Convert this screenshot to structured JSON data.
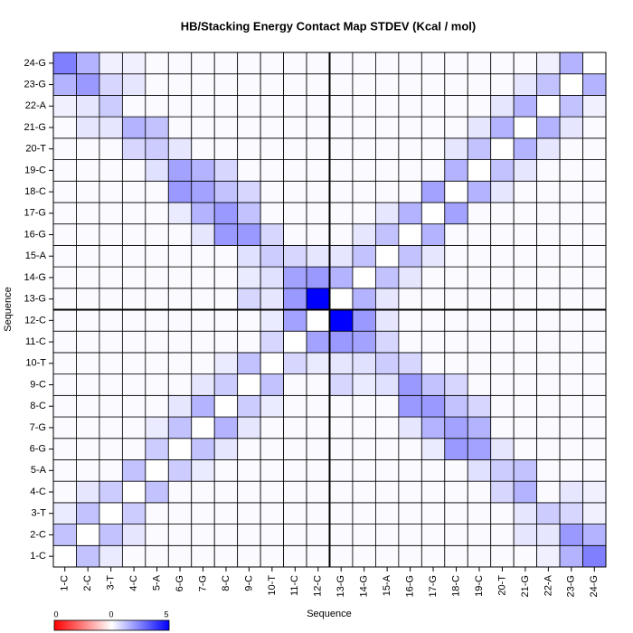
{
  "chart_data": {
    "type": "heatmap",
    "title": "HB/Stacking Energy Contact Map STDEV (Kcal / mol)",
    "x_label": "Sequence",
    "y_label": "Sequence",
    "categories": [
      "1-C",
      "2-C",
      "3-T",
      "4-C",
      "5-A",
      "6-G",
      "7-G",
      "8-C",
      "9-C",
      "10-T",
      "11-C",
      "12-C",
      "13-G",
      "14-G",
      "15-A",
      "16-G",
      "17-G",
      "18-C",
      "19-C",
      "20-T",
      "21-G",
      "22-A",
      "23-G",
      "24-G"
    ],
    "zlim": [
      0,
      5
    ],
    "colormap": [
      "#ff0000",
      "#ffffff",
      "#0000ff"
    ],
    "colorbar_labels": [
      "0",
      "0",
      "5"
    ],
    "values": [
      [
        0,
        1.2,
        0.4,
        0.1,
        0.1,
        0.1,
        0.1,
        0.1,
        0.1,
        0.1,
        0.1,
        0.1,
        0.1,
        0.1,
        0.1,
        0.1,
        0.1,
        0.1,
        0.1,
        0.1,
        0.1,
        0.3,
        1.5,
        2.5
      ],
      [
        1.2,
        0,
        1.2,
        0.5,
        0.1,
        0.1,
        0.1,
        0.1,
        0.1,
        0.1,
        0.1,
        0.1,
        0.1,
        0.1,
        0.1,
        0.1,
        0.1,
        0.1,
        0.1,
        0.1,
        0.5,
        0.5,
        2.0,
        1.5
      ],
      [
        0.4,
        1.2,
        0,
        1.0,
        0.1,
        0.1,
        0.1,
        0.1,
        0.1,
        0.1,
        0.1,
        0.1,
        0.1,
        0.1,
        0.1,
        0.1,
        0.1,
        0.1,
        0.1,
        0.1,
        0.5,
        1.0,
        0.8,
        0.3
      ],
      [
        0.1,
        0.5,
        1.0,
        0,
        1.2,
        0.1,
        0.1,
        0.1,
        0.1,
        0.1,
        0.1,
        0.1,
        0.1,
        0.1,
        0.1,
        0.1,
        0.1,
        0.1,
        0.1,
        0.8,
        1.5,
        0.1,
        0.5,
        0.3
      ],
      [
        0.1,
        0.1,
        0.1,
        1.2,
        0,
        1.0,
        0.4,
        0.1,
        0.1,
        0.1,
        0.1,
        0.1,
        0.1,
        0.1,
        0.1,
        0.1,
        0.1,
        0.1,
        0.6,
        1.0,
        1.2,
        0.1,
        0.1,
        0.1
      ],
      [
        0.1,
        0.1,
        0.1,
        0.1,
        1.0,
        0,
        1.2,
        0.5,
        0.1,
        0.1,
        0.1,
        0.1,
        0.1,
        0.1,
        0.1,
        0.1,
        0.4,
        2.0,
        1.8,
        0.5,
        0.1,
        0.1,
        0.1,
        0.1
      ],
      [
        0.1,
        0.1,
        0.1,
        0.1,
        0.4,
        1.2,
        0,
        1.5,
        0.5,
        0.1,
        0.1,
        0.1,
        0.1,
        0.1,
        0.1,
        0.5,
        1.5,
        1.8,
        1.5,
        0.1,
        0.1,
        0.1,
        0.1,
        0.1
      ],
      [
        0.1,
        0.1,
        0.1,
        0.1,
        0.1,
        0.5,
        1.5,
        0,
        1.0,
        0.4,
        0.1,
        0.1,
        0.1,
        0.1,
        0.1,
        2.0,
        2.0,
        1.2,
        0.8,
        0.1,
        0.1,
        0.1,
        0.1,
        0.1
      ],
      [
        0.1,
        0.1,
        0.1,
        0.1,
        0.1,
        0.1,
        0.5,
        1.0,
        0,
        1.2,
        0.1,
        0.1,
        0.8,
        0.4,
        0.6,
        2.0,
        1.2,
        0.8,
        0.1,
        0.1,
        0.1,
        0.1,
        0.1,
        0.1
      ],
      [
        0.1,
        0.1,
        0.1,
        0.1,
        0.1,
        0.1,
        0.1,
        0.4,
        1.2,
        0,
        0.8,
        0.4,
        0.5,
        0.6,
        1.0,
        0.8,
        0.1,
        0.1,
        0.1,
        0.1,
        0.1,
        0.1,
        0.1,
        0.1
      ],
      [
        0.1,
        0.1,
        0.1,
        0.1,
        0.1,
        0.1,
        0.1,
        0.1,
        0.1,
        0.8,
        0,
        1.8,
        2.0,
        1.8,
        0.8,
        0.1,
        0.1,
        0.1,
        0.1,
        0.1,
        0.1,
        0.1,
        0.1,
        0.1
      ],
      [
        0.1,
        0.1,
        0.1,
        0.1,
        0.1,
        0.1,
        0.1,
        0.1,
        0.1,
        0.4,
        1.8,
        0,
        5.0,
        2.0,
        0.5,
        0.1,
        0.1,
        0.1,
        0.1,
        0.1,
        0.1,
        0.1,
        0.1,
        0.1
      ],
      [
        0.1,
        0.1,
        0.1,
        0.1,
        0.1,
        0.1,
        0.1,
        0.1,
        0.8,
        0.5,
        2.0,
        5.0,
        0,
        1.5,
        0.5,
        0.1,
        0.1,
        0.1,
        0.1,
        0.1,
        0.1,
        0.1,
        0.1,
        0.1
      ],
      [
        0.1,
        0.1,
        0.1,
        0.1,
        0.1,
        0.1,
        0.1,
        0.1,
        0.4,
        0.6,
        1.8,
        2.0,
        1.5,
        0,
        1.2,
        0.5,
        0.1,
        0.1,
        0.1,
        0.1,
        0.1,
        0.1,
        0.1,
        0.1
      ],
      [
        0.1,
        0.1,
        0.1,
        0.1,
        0.1,
        0.1,
        0.1,
        0.1,
        0.6,
        1.0,
        0.8,
        0.5,
        0.5,
        1.2,
        0,
        1.2,
        0.5,
        0.1,
        0.1,
        0.1,
        0.1,
        0.1,
        0.1,
        0.1
      ],
      [
        0.1,
        0.1,
        0.1,
        0.1,
        0.1,
        0.1,
        0.5,
        2.0,
        2.0,
        0.8,
        0.1,
        0.1,
        0.1,
        0.5,
        1.2,
        0,
        1.5,
        0.1,
        0.1,
        0.1,
        0.1,
        0.1,
        0.1,
        0.1
      ],
      [
        0.1,
        0.1,
        0.1,
        0.1,
        0.1,
        0.4,
        1.5,
        2.0,
        1.2,
        0.1,
        0.1,
        0.1,
        0.1,
        0.1,
        0.5,
        1.5,
        0,
        1.8,
        0.1,
        0.1,
        0.1,
        0.1,
        0.1,
        0.1
      ],
      [
        0.1,
        0.1,
        0.1,
        0.1,
        0.1,
        2.0,
        1.8,
        1.2,
        0.8,
        0.1,
        0.1,
        0.1,
        0.1,
        0.1,
        0.1,
        0.1,
        1.8,
        0,
        1.5,
        0.5,
        0.1,
        0.1,
        0.1,
        0.1
      ],
      [
        0.1,
        0.1,
        0.1,
        0.1,
        0.6,
        1.8,
        1.5,
        0.8,
        0.1,
        0.1,
        0.1,
        0.1,
        0.1,
        0.1,
        0.1,
        0.1,
        0.1,
        1.5,
        0,
        1.2,
        0.5,
        0.1,
        0.1,
        0.1
      ],
      [
        0.1,
        0.1,
        0.1,
        0.8,
        1.0,
        0.5,
        0.1,
        0.1,
        0.1,
        0.1,
        0.1,
        0.1,
        0.1,
        0.1,
        0.1,
        0.1,
        0.1,
        0.5,
        1.2,
        0,
        1.5,
        0.5,
        0.1,
        0.1
      ],
      [
        0.1,
        0.5,
        0.5,
        1.5,
        1.2,
        0.1,
        0.1,
        0.1,
        0.1,
        0.1,
        0.1,
        0.1,
        0.1,
        0.1,
        0.1,
        0.1,
        0.1,
        0.1,
        0.5,
        1.5,
        0,
        1.5,
        0.5,
        0.1
      ],
      [
        0.3,
        0.5,
        1.0,
        0.1,
        0.1,
        0.1,
        0.1,
        0.1,
        0.1,
        0.1,
        0.1,
        0.1,
        0.1,
        0.1,
        0.1,
        0.1,
        0.1,
        0.1,
        0.1,
        0.5,
        1.5,
        0,
        1.2,
        0.3
      ],
      [
        1.5,
        2.0,
        0.8,
        0.5,
        0.1,
        0.1,
        0.1,
        0.1,
        0.1,
        0.1,
        0.1,
        0.1,
        0.1,
        0.1,
        0.1,
        0.1,
        0.1,
        0.1,
        0.1,
        0.1,
        0.5,
        1.2,
        0,
        1.5
      ],
      [
        2.5,
        1.5,
        0.3,
        0.3,
        0.1,
        0.1,
        0.1,
        0.1,
        0.1,
        0.1,
        0.1,
        0.1,
        0.1,
        0.1,
        0.1,
        0.1,
        0.1,
        0.1,
        0.1,
        0.1,
        0.1,
        0.3,
        1.5,
        0
      ]
    ]
  }
}
